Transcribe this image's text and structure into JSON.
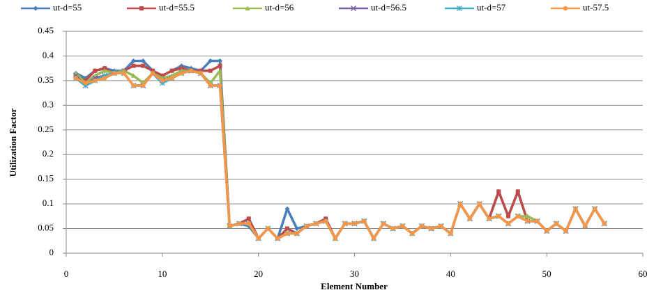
{
  "chart_data": {
    "type": "line",
    "xlabel": "Element Number",
    "ylabel": "Utilization Factor",
    "x": [
      1,
      2,
      3,
      4,
      5,
      6,
      7,
      8,
      9,
      10,
      11,
      12,
      13,
      14,
      15,
      16,
      17,
      18,
      19,
      20,
      21,
      22,
      23,
      24,
      25,
      26,
      27,
      28,
      29,
      30,
      31,
      32,
      33,
      34,
      35,
      36,
      37,
      38,
      39,
      40,
      41,
      42,
      43,
      44,
      45,
      46,
      47,
      48,
      49,
      50,
      51,
      52,
      53,
      54,
      55,
      56
    ],
    "xlim": [
      0,
      60
    ],
    "xticks": [
      0,
      10,
      20,
      30,
      40,
      50,
      60
    ],
    "ylim": [
      0,
      0.45
    ],
    "yticks": [
      0,
      0.05,
      0.1,
      0.15,
      0.2,
      0.25,
      0.3,
      0.35,
      0.4,
      0.45
    ],
    "grid": true,
    "legend": "top",
    "series": [
      {
        "name": "ut-d=55",
        "color": "#4a7ebb",
        "marker": "diamond",
        "values": [
          0.365,
          0.355,
          0.37,
          0.375,
          0.37,
          0.37,
          0.39,
          0.39,
          0.37,
          0.36,
          0.37,
          0.38,
          0.375,
          0.37,
          0.39,
          0.39,
          0.055,
          0.06,
          0.055,
          0.03,
          0.05,
          0.03,
          0.09,
          0.05,
          0.055,
          0.06,
          0.065,
          0.03,
          0.06,
          0.06,
          0.065,
          0.03,
          0.06,
          0.05,
          0.055,
          0.04,
          0.055,
          0.05,
          0.055,
          0.04,
          0.1,
          0.07,
          0.1,
          0.07,
          0.125,
          0.075,
          0.125,
          0.065,
          0.065,
          0.045,
          0.06,
          0.045,
          0.09,
          0.055,
          0.09,
          0.06
        ]
      },
      {
        "name": "ut-d=55.5",
        "color": "#be4b48",
        "marker": "square",
        "values": [
          0.36,
          0.35,
          0.37,
          0.375,
          0.365,
          0.37,
          0.38,
          0.38,
          0.37,
          0.36,
          0.37,
          0.375,
          0.37,
          0.37,
          0.37,
          0.38,
          0.055,
          0.06,
          0.07,
          0.03,
          0.05,
          0.03,
          0.05,
          0.04,
          0.055,
          0.06,
          0.07,
          0.03,
          0.06,
          0.06,
          0.065,
          0.03,
          0.06,
          0.05,
          0.055,
          0.04,
          0.055,
          0.05,
          0.055,
          0.04,
          0.1,
          0.07,
          0.1,
          0.07,
          0.125,
          0.075,
          0.125,
          0.065,
          0.065,
          0.045,
          0.06,
          0.045,
          0.09,
          0.055,
          0.09,
          0.06
        ]
      },
      {
        "name": "ut-d=56",
        "color": "#98b954",
        "marker": "triangle",
        "values": [
          0.365,
          0.345,
          0.36,
          0.37,
          0.365,
          0.37,
          0.36,
          0.345,
          0.365,
          0.355,
          0.36,
          0.37,
          0.37,
          0.365,
          0.345,
          0.37,
          0.055,
          0.06,
          0.06,
          0.03,
          0.05,
          0.03,
          0.04,
          0.04,
          0.055,
          0.06,
          0.065,
          0.03,
          0.06,
          0.06,
          0.065,
          0.03,
          0.06,
          0.05,
          0.055,
          0.04,
          0.055,
          0.05,
          0.055,
          0.04,
          0.1,
          0.07,
          0.1,
          0.07,
          0.075,
          0.06,
          0.075,
          0.075,
          0.065,
          0.045,
          0.06,
          0.045,
          0.09,
          0.055,
          0.09,
          0.06
        ]
      },
      {
        "name": "ut-d=56.5",
        "color": "#7d60a0",
        "marker": "x",
        "values": [
          0.36,
          0.34,
          0.355,
          0.36,
          0.365,
          0.365,
          0.34,
          0.34,
          0.365,
          0.35,
          0.355,
          0.365,
          0.37,
          0.365,
          0.34,
          0.34,
          0.055,
          0.06,
          0.06,
          0.03,
          0.05,
          0.03,
          0.04,
          0.04,
          0.055,
          0.06,
          0.065,
          0.03,
          0.06,
          0.06,
          0.065,
          0.03,
          0.06,
          0.05,
          0.055,
          0.04,
          0.055,
          0.05,
          0.055,
          0.04,
          0.1,
          0.07,
          0.1,
          0.07,
          0.075,
          0.06,
          0.075,
          0.065,
          0.065,
          0.045,
          0.06,
          0.045,
          0.09,
          0.055,
          0.09,
          0.06
        ]
      },
      {
        "name": "ut-d=57",
        "color": "#46aac5",
        "marker": "star",
        "values": [
          0.355,
          0.34,
          0.35,
          0.36,
          0.365,
          0.365,
          0.34,
          0.34,
          0.365,
          0.345,
          0.355,
          0.365,
          0.37,
          0.365,
          0.34,
          0.34,
          0.055,
          0.06,
          0.06,
          0.03,
          0.05,
          0.03,
          0.04,
          0.04,
          0.055,
          0.06,
          0.065,
          0.03,
          0.06,
          0.06,
          0.065,
          0.03,
          0.06,
          0.05,
          0.055,
          0.04,
          0.055,
          0.05,
          0.055,
          0.04,
          0.1,
          0.07,
          0.1,
          0.07,
          0.075,
          0.06,
          0.075,
          0.065,
          0.065,
          0.045,
          0.06,
          0.045,
          0.09,
          0.055,
          0.09,
          0.06
        ]
      },
      {
        "name": "ut-57.5",
        "color": "#f79646",
        "marker": "circle",
        "values": [
          0.355,
          0.345,
          0.35,
          0.355,
          0.365,
          0.365,
          0.34,
          0.34,
          0.365,
          0.35,
          0.355,
          0.365,
          0.37,
          0.365,
          0.34,
          0.34,
          0.055,
          0.06,
          0.06,
          0.03,
          0.05,
          0.03,
          0.04,
          0.04,
          0.055,
          0.06,
          0.065,
          0.03,
          0.06,
          0.06,
          0.065,
          0.03,
          0.06,
          0.05,
          0.055,
          0.04,
          0.055,
          0.05,
          0.055,
          0.04,
          0.1,
          0.07,
          0.1,
          0.07,
          0.075,
          0.06,
          0.075,
          0.065,
          0.065,
          0.045,
          0.06,
          0.045,
          0.09,
          0.055,
          0.09,
          0.06
        ]
      }
    ]
  }
}
